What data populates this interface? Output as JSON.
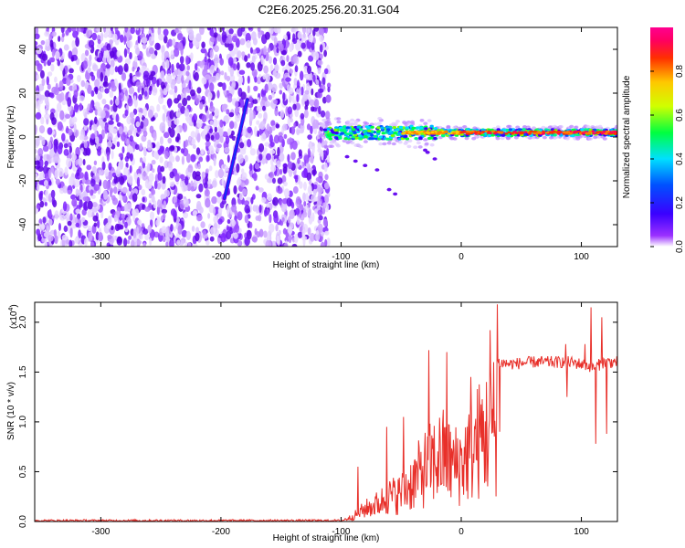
{
  "title": "C2E6.2025.256.20.31.G04",
  "chart_data": [
    {
      "type": "heatmap",
      "title": "C2E6.2025.256.20.31.G04",
      "xlabel": "Height of straight line (km)",
      "ylabel": "Frequency (Hz)",
      "xlim": [
        -355,
        130
      ],
      "ylim": [
        -50,
        50
      ],
      "xticks": [
        -300,
        -200,
        -100,
        0,
        100
      ],
      "yticks": [
        -40,
        -20,
        0,
        20,
        40
      ],
      "noise_region_x": [
        -355,
        -110
      ],
      "signal_region_x": [
        -118,
        130
      ],
      "signal_center_freq_hz": 2,
      "streak": {
        "x_start": -197,
        "f_start": -28,
        "x_end": -178,
        "f_end": 17
      },
      "colorbar": {
        "label": "Normalized spectral amplitude",
        "range": [
          0.0,
          1.0
        ],
        "ticks": [
          "0.0",
          "0.2",
          "0.4",
          "0.6",
          "0.8"
        ],
        "tick_values": [
          0.0,
          0.2,
          0.4,
          0.6,
          0.8
        ],
        "colors": [
          "#ffffff",
          "#9b30ff",
          "#3a00ff",
          "#0050ff",
          "#00e0ff",
          "#00ff40",
          "#d0ff00",
          "#ffc800",
          "#ff3000",
          "#ff0060",
          "#ff0090"
        ]
      }
    },
    {
      "type": "line",
      "xlabel": "Height of straight line (km)",
      "ylabel": "SNR (10 * v/v)",
      "yscale_label": "(x10",
      "yscale_exponent": "4",
      "yscale_suffix": ")",
      "xlim": [
        -355,
        130
      ],
      "ylim": [
        0,
        2.2
      ],
      "xticks": [
        -300,
        -200,
        -100,
        0,
        100
      ],
      "yticks": [
        "0.0",
        "0.5",
        "1.0",
        "1.5",
        "2.0"
      ],
      "ytick_values": [
        0.0,
        0.5,
        1.0,
        1.5,
        2.0
      ],
      "line_color": "#e8302a",
      "envelope_points": {
        "x": [
          -355,
          -100,
          -90,
          -80,
          -70,
          -60,
          -50,
          -40,
          -30,
          -20,
          -15,
          -10,
          -5,
          0,
          10,
          20,
          25,
          30,
          40,
          60,
          80,
          90,
          100,
          110,
          120,
          130
        ],
        "y": [
          0.01,
          0.01,
          0.08,
          0.2,
          0.28,
          0.4,
          0.45,
          0.65,
          0.85,
          1.0,
          1.05,
          0.95,
          0.9,
          0.95,
          1.2,
          1.4,
          1.5,
          1.6,
          1.58,
          1.6,
          1.6,
          1.6,
          1.58,
          1.55,
          1.6,
          1.6
        ]
      },
      "spikes": [
        {
          "x": -86,
          "y": 0.55
        },
        {
          "x": -62,
          "y": 0.95
        },
        {
          "x": -48,
          "y": 1.05
        },
        {
          "x": -27,
          "y": 1.72
        },
        {
          "x": -12,
          "y": 1.7
        },
        {
          "x": 8,
          "y": 1.45
        },
        {
          "x": 24,
          "y": 1.92
        },
        {
          "x": 30,
          "y": 2.18
        },
        {
          "x": 32,
          "y": 0.9
        },
        {
          "x": 87,
          "y": 1.78
        },
        {
          "x": 88,
          "y": 1.25
        },
        {
          "x": 103,
          "y": 1.78
        },
        {
          "x": 108,
          "y": 2.15
        },
        {
          "x": 112,
          "y": 0.78
        },
        {
          "x": 117,
          "y": 2.05
        },
        {
          "x": 121,
          "y": 0.88
        }
      ]
    }
  ]
}
